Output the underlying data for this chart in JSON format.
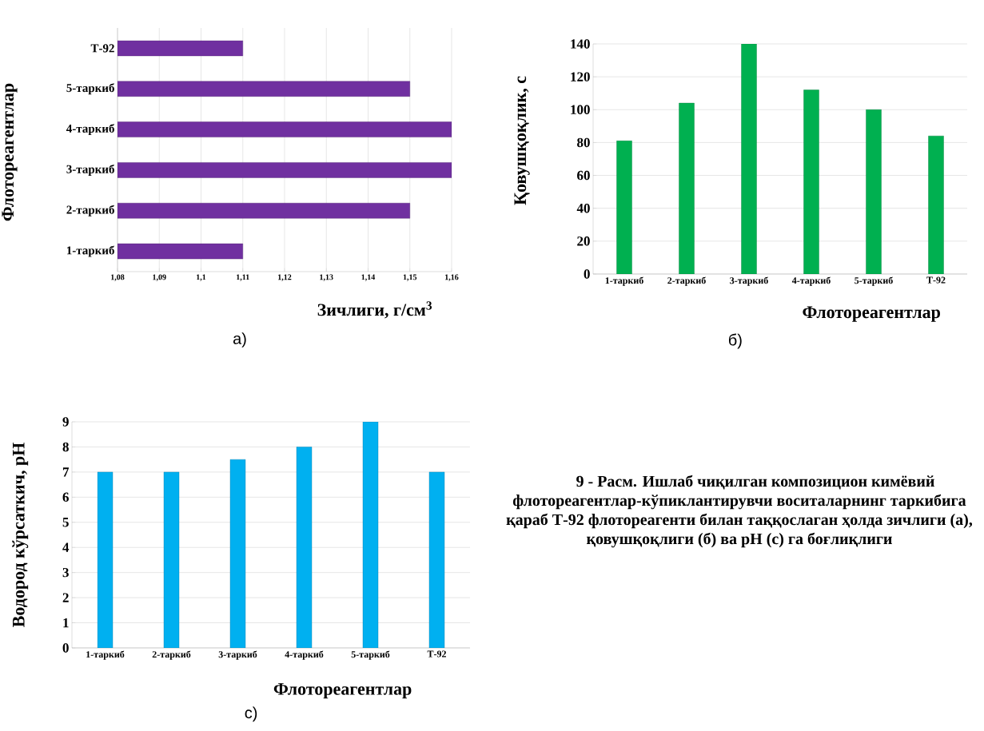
{
  "chart_data": [
    {
      "type": "bar",
      "orientation": "horizontal",
      "subtitle": "а)",
      "xlabel": "Зичлиги, г/см$^{3}$",
      "ylabel": "Флотореагентлар",
      "categories": [
        "Т-92",
        "5-таркиб",
        "4-таркиб",
        "3-таркиб",
        "2-таркиб",
        "1-таркиб"
      ],
      "values": [
        1.11,
        1.15,
        1.16,
        1.16,
        1.15,
        1.11
      ],
      "color": "#7030a0",
      "xlim": [
        1.08,
        1.16
      ],
      "xticks": [
        {
          "value": 1.08,
          "label": "1,08"
        },
        {
          "value": 1.09,
          "label": "1,09"
        },
        {
          "value": 1.1,
          "label": "1,1"
        },
        {
          "value": 1.11,
          "label": "1,11"
        },
        {
          "value": 1.12,
          "label": "1,12"
        },
        {
          "value": 1.13,
          "label": "1,13"
        },
        {
          "value": 1.14,
          "label": "1,14"
        },
        {
          "value": 1.15,
          "label": "1,15"
        },
        {
          "value": 1.16,
          "label": "1,16"
        }
      ],
      "grid": "x"
    },
    {
      "type": "bar",
      "subtitle": "б)",
      "xlabel": "Флотореагентлар",
      "ylabel": "Қовушқоқлик, с",
      "categories": [
        "1-таркиб",
        "2-таркиб",
        "3-таркиб",
        "4-таркиб",
        "5-таркиб",
        "Т-92"
      ],
      "values": [
        81,
        104,
        140,
        112,
        100,
        84
      ],
      "color": "#00b050",
      "ylim": [
        0,
        140
      ],
      "yticks": [
        0,
        20,
        40,
        60,
        80,
        100,
        120,
        140
      ],
      "grid": "y"
    },
    {
      "type": "bar",
      "subtitle": "с)",
      "xlabel": "Флотореагентлар",
      "ylabel": "Водород кўрсаткич, рН",
      "categories": [
        "1-таркиб",
        "2-таркиб",
        "3-таркиб",
        "4-таркиб",
        "5-таркиб",
        "Т-92"
      ],
      "values": [
        7,
        7,
        7.5,
        8,
        9,
        7
      ],
      "color": "#00b0f0",
      "ylim": [
        0,
        9
      ],
      "yticks": [
        0,
        1,
        2,
        3,
        4,
        5,
        6,
        7,
        8,
        9
      ],
      "grid": "y"
    },
    {
      "type": "other",
      "title": "9 - Расм. Ишлаб чиқилган композицион кимёвий флотореагентлар-кўпиклантирувчи воситаларнинг таркибига қараб Т-92 флотореагенти билан таққослаган ҳолда зичлиги (а), қовушқоқлиги (б) ва рН (с) га боғлиқлиги"
    }
  ]
}
